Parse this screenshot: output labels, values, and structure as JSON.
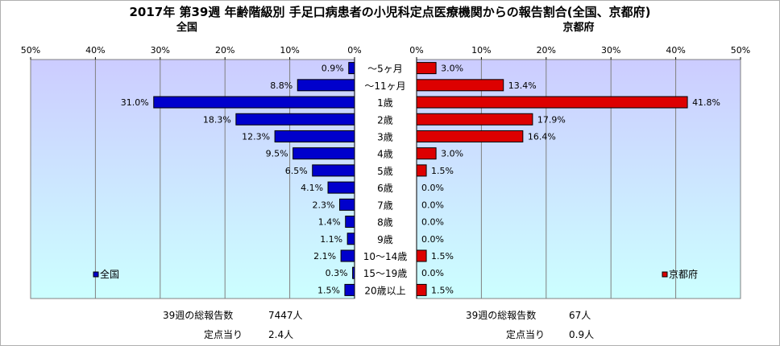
{
  "title": "2017年 第39週 年齢階級別 手足口病患者の小児科定点医療機関からの報告割合(全国、京都府)",
  "chart_data": {
    "type": "bar",
    "orientation": "horizontal",
    "categories": [
      "～5ヶ月",
      "～11ヶ月",
      "1歳",
      "2歳",
      "3歳",
      "4歳",
      "5歳",
      "6歳",
      "7歳",
      "8歳",
      "9歳",
      "10～14歳",
      "15～19歳",
      "20歳以上"
    ],
    "xlim": [
      0,
      50
    ],
    "tick_values": [
      0,
      10,
      20,
      30,
      40,
      50
    ],
    "grid": true,
    "panels": [
      {
        "side": "left",
        "label": "全国",
        "legend": "全国",
        "color": "#0000cc",
        "values": [
          0.9,
          8.8,
          31.0,
          18.3,
          12.3,
          9.5,
          6.5,
          4.1,
          2.3,
          1.4,
          1.1,
          2.1,
          0.3,
          1.5
        ],
        "value_labels": [
          "0.9%",
          "8.8%",
          "31.0%",
          "18.3%",
          "12.3%",
          "9.5%",
          "6.5%",
          "4.1%",
          "2.3%",
          "1.4%",
          "1.1%",
          "2.1%",
          "0.3%",
          "1.5%"
        ],
        "tick_labels": [
          "50%",
          "40%",
          "30%",
          "20%",
          "10%",
          "0%"
        ]
      },
      {
        "side": "right",
        "label": "京都府",
        "legend": "京都府",
        "color": "#dd0000",
        "values": [
          3.0,
          13.4,
          41.8,
          17.9,
          16.4,
          3.0,
          1.5,
          0.0,
          0.0,
          0.0,
          0.0,
          1.5,
          0.0,
          1.5
        ],
        "value_labels": [
          "3.0%",
          "13.4%",
          "41.8%",
          "17.9%",
          "16.4%",
          "3.0%",
          "1.5%",
          "0.0%",
          "0.0%",
          "0.0%",
          "0.0%",
          "1.5%",
          "0.0%",
          "1.5%"
        ],
        "tick_labels": [
          "0%",
          "10%",
          "20%",
          "30%",
          "40%",
          "50%"
        ]
      }
    ]
  },
  "footer": {
    "left": {
      "total_label": "39週の総報告数",
      "total_value": "7447人",
      "per_label": "定点当り",
      "per_value": "2.4人"
    },
    "right": {
      "total_label": "39週の総報告数",
      "total_value": "67人",
      "per_label": "定点当り",
      "per_value": "0.9人"
    }
  },
  "colors": {
    "plot_top": "#ccccff",
    "plot_bottom": "#ccffff",
    "grid": "#808080"
  }
}
